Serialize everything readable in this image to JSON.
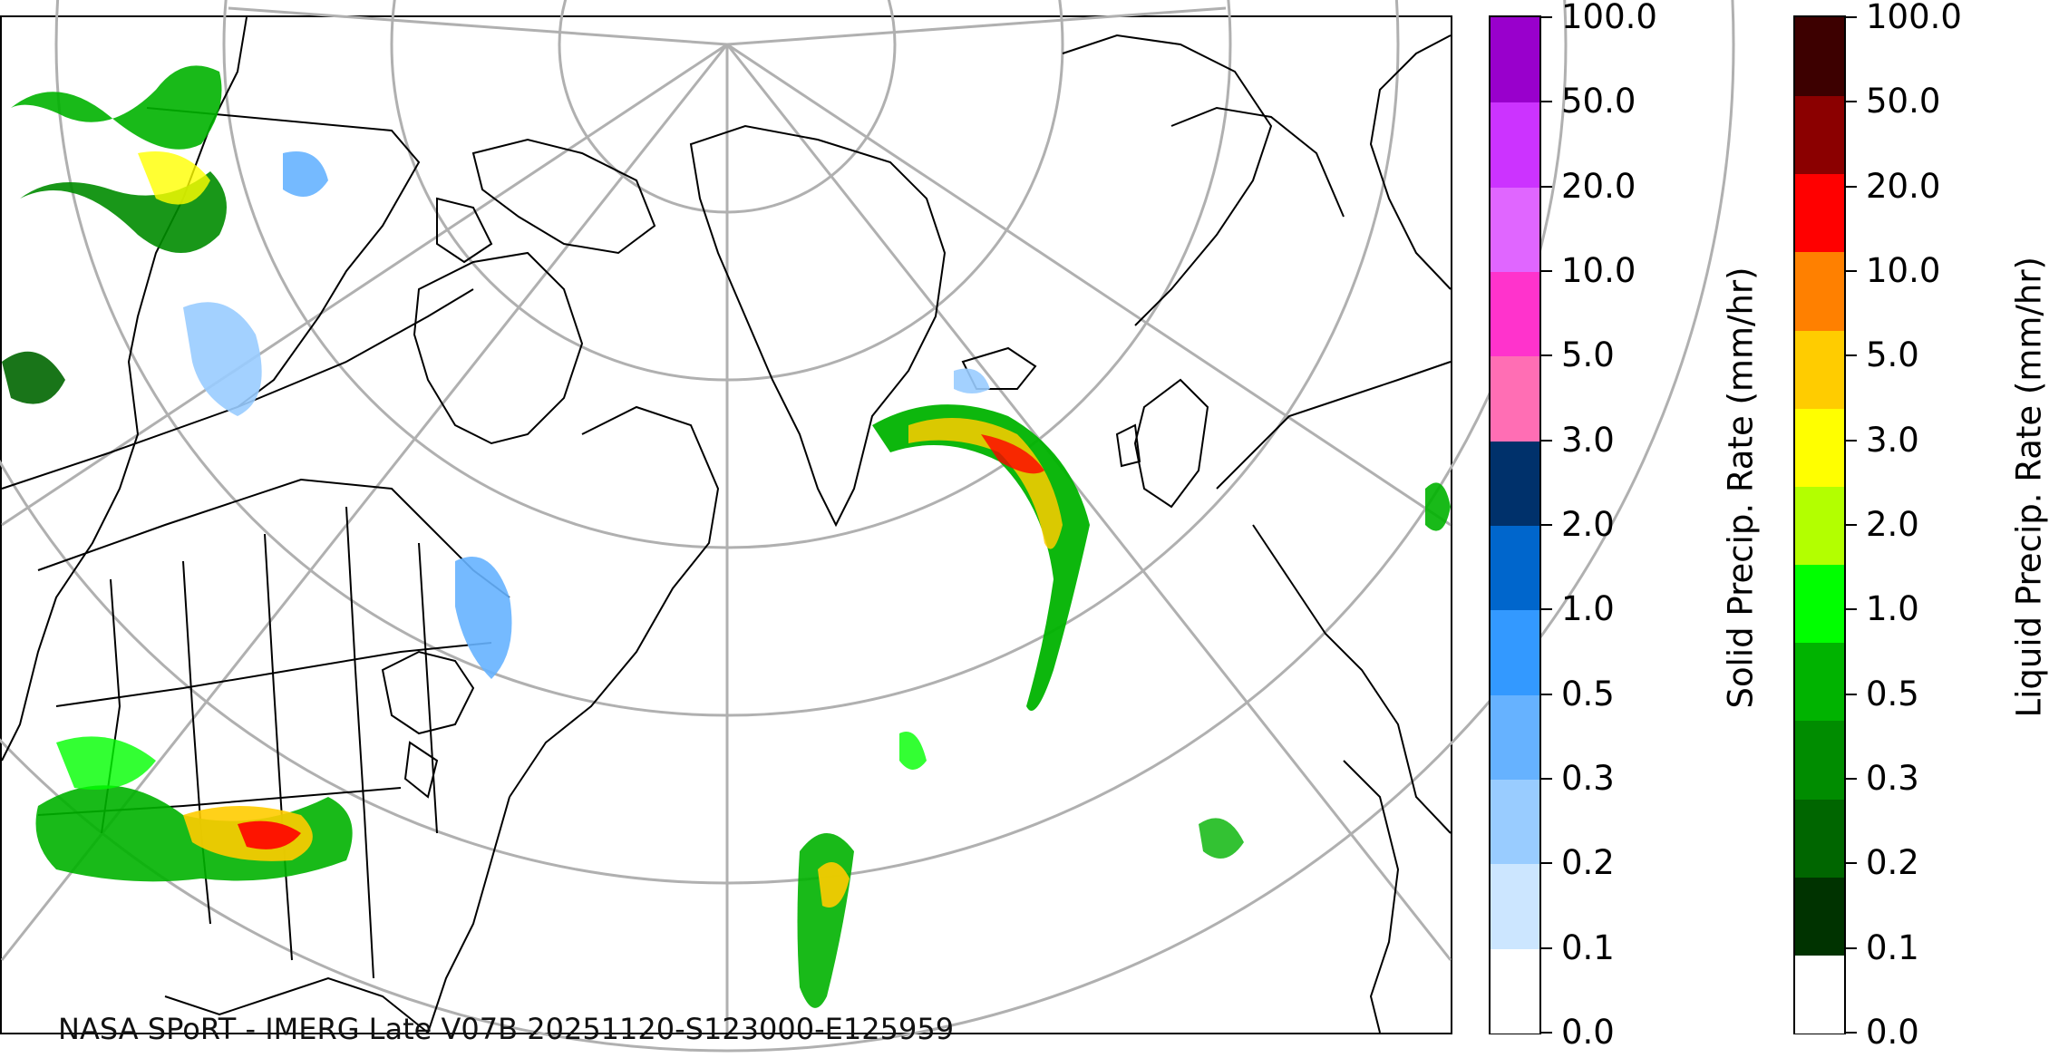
{
  "map": {
    "credit_text": "NASA SPoRT - IMERG Late V07B 20251120-S123000-E125959",
    "colors": {
      "graticule": "#b0b0b0",
      "coastline": "#000000",
      "borders": "#000000"
    }
  },
  "solid_colorbar": {
    "title": "Solid Precip. Rate (mm/hr)",
    "tick_labels": [
      "0.0",
      "0.1",
      "0.2",
      "0.3",
      "0.5",
      "1.0",
      "2.0",
      "3.0",
      "5.0",
      "10.0",
      "20.0",
      "50.0",
      "100.0"
    ],
    "colors": [
      "#ffffff",
      "#cce6ff",
      "#99ccff",
      "#66b2ff",
      "#3399ff",
      "#0066cc",
      "#00316b",
      "#ff6eb4",
      "#ff33cc",
      "#e066ff",
      "#cc33ff",
      "#9900cc"
    ]
  },
  "liquid_colorbar": {
    "title": "Liquid Precip. Rate (mm/hr)",
    "tick_labels": [
      "0.0",
      "0.1",
      "0.2",
      "0.3",
      "0.5",
      "1.0",
      "2.0",
      "3.0",
      "5.0",
      "10.0",
      "20.0",
      "50.0",
      "100.0"
    ],
    "colors": [
      "#ffffff",
      "#003300",
      "#006600",
      "#008c00",
      "#00b300",
      "#00ff00",
      "#b3ff00",
      "#ffff00",
      "#ffcc00",
      "#ff8000",
      "#ff0000",
      "#8b0000",
      "#3d0000"
    ]
  }
}
